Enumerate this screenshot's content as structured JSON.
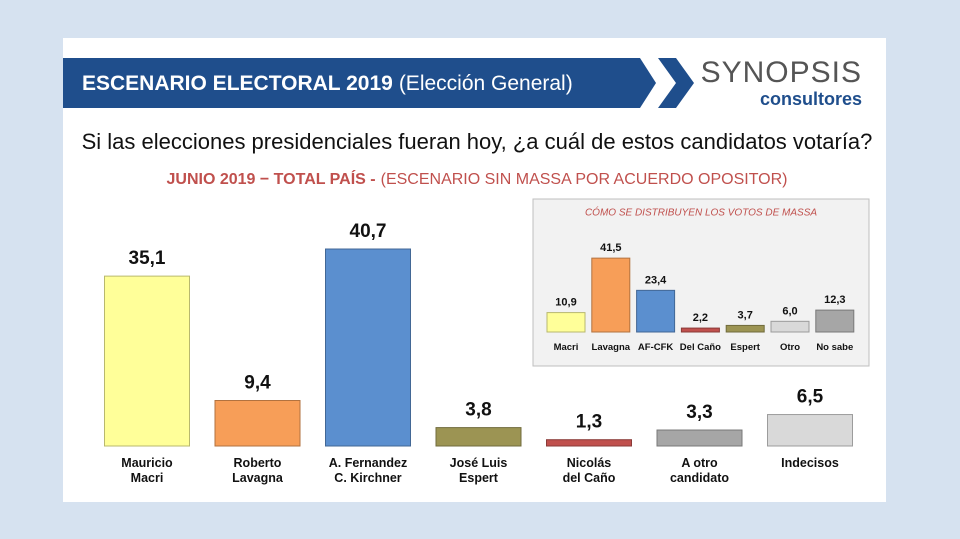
{
  "header": {
    "title": "ESCENARIO ELECTORAL 2019",
    "subtitle": "(Elección General)"
  },
  "logo": {
    "name": "SYNOPSIS",
    "tagline": "consultores"
  },
  "chart_data": [
    {
      "type": "bar",
      "title": "Si las elecciones presidenciales fueran hoy, ¿a cuál de estos candidatos votaría?",
      "subtitle": "JUNIO 2019 − TOTAL PAÍS -",
      "note": "(ESCENARIO SIN MASSA POR ACUERDO OPOSITOR)",
      "categories": [
        "Mauricio\nMacri",
        "Roberto\nLavagna",
        "A. Fernandez\nC. Kirchner",
        "José Luis\nEspert",
        "Nicolás\ndel Caño",
        "A otro\ncandidato",
        "Indecisos"
      ],
      "values": [
        35.1,
        9.4,
        40.7,
        3.8,
        1.3,
        3.3,
        6.5
      ],
      "value_labels": [
        "35,1",
        "9,4",
        "40,7",
        "3,8",
        "1,3",
        "3,3",
        "6,5"
      ],
      "colors": [
        "#ffff99",
        "#f79e58",
        "#5b8fcf",
        "#9c9453",
        "#c0504d",
        "#a6a6a6",
        "#d9d9d9"
      ]
    },
    {
      "type": "bar",
      "title": "CÓMO SE DISTRIBUYEN LOS VOTOS DE MASSA",
      "categories": [
        "Macri",
        "Lavagna",
        "AF-CFK",
        "Del Caño",
        "Espert",
        "Otro",
        "No sabe"
      ],
      "values": [
        10.9,
        41.5,
        23.4,
        2.2,
        3.7,
        6.0,
        12.3
      ],
      "value_labels": [
        "10,9",
        "41,5",
        "23,4",
        "2,2",
        "3,7",
        "6,0",
        "12,3"
      ],
      "colors": [
        "#ffff99",
        "#f79e58",
        "#5b8fcf",
        "#c0504d",
        "#9c9453",
        "#d9d9d9",
        "#a6a6a6"
      ]
    }
  ]
}
